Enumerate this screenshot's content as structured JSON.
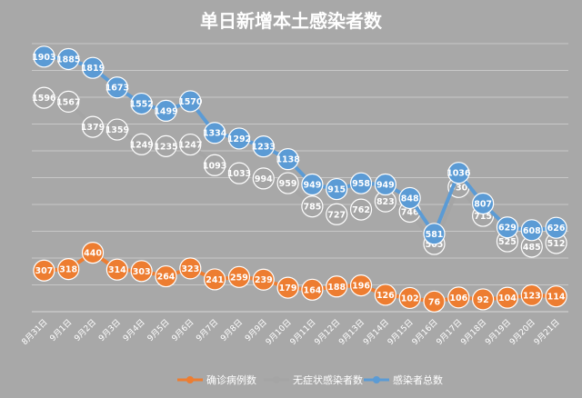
{
  "chart_data": {
    "type": "line",
    "title": "单日新增本土感染者数",
    "categories": [
      "8月31日",
      "9月1日",
      "9月2日",
      "9月3日",
      "9月4日",
      "9月5日",
      "9月6日",
      "9月7日",
      "9月8日",
      "9月9日",
      "9月10日",
      "9月11日",
      "9月12日",
      "9月13日",
      "9月14日",
      "9月15日",
      "9月16日",
      "9月17日",
      "9月18日",
      "9月19日",
      "9月20日",
      "9月21日"
    ],
    "series": [
      {
        "name": "确诊病例数",
        "color": "#ed7d31",
        "values": [
          307,
          318,
          440,
          314,
          303,
          264,
          323,
          241,
          259,
          239,
          179,
          164,
          188,
          196,
          126,
          102,
          76,
          106,
          92,
          104,
          123,
          114
        ]
      },
      {
        "name": "无症状感染者数",
        "color": "#a5a5a5",
        "values": [
          1596,
          1567,
          1379,
          1359,
          1249,
          1235,
          1247,
          1093,
          1033,
          994,
          959,
          785,
          727,
          762,
          823,
          746,
          505,
          930,
          715,
          525,
          485,
          512
        ]
      },
      {
        "name": "感染者总数",
        "color": "#5b9bd5",
        "values": [
          1903,
          1885,
          1819,
          1673,
          1552,
          1499,
          1570,
          1334,
          1292,
          1233,
          1138,
          949,
          915,
          958,
          949,
          848,
          581,
          1036,
          807,
          629,
          608,
          626
        ]
      }
    ],
    "ylim": [
      0,
      2000
    ],
    "grid": true,
    "legend_position": "bottom",
    "data_labels": true
  }
}
